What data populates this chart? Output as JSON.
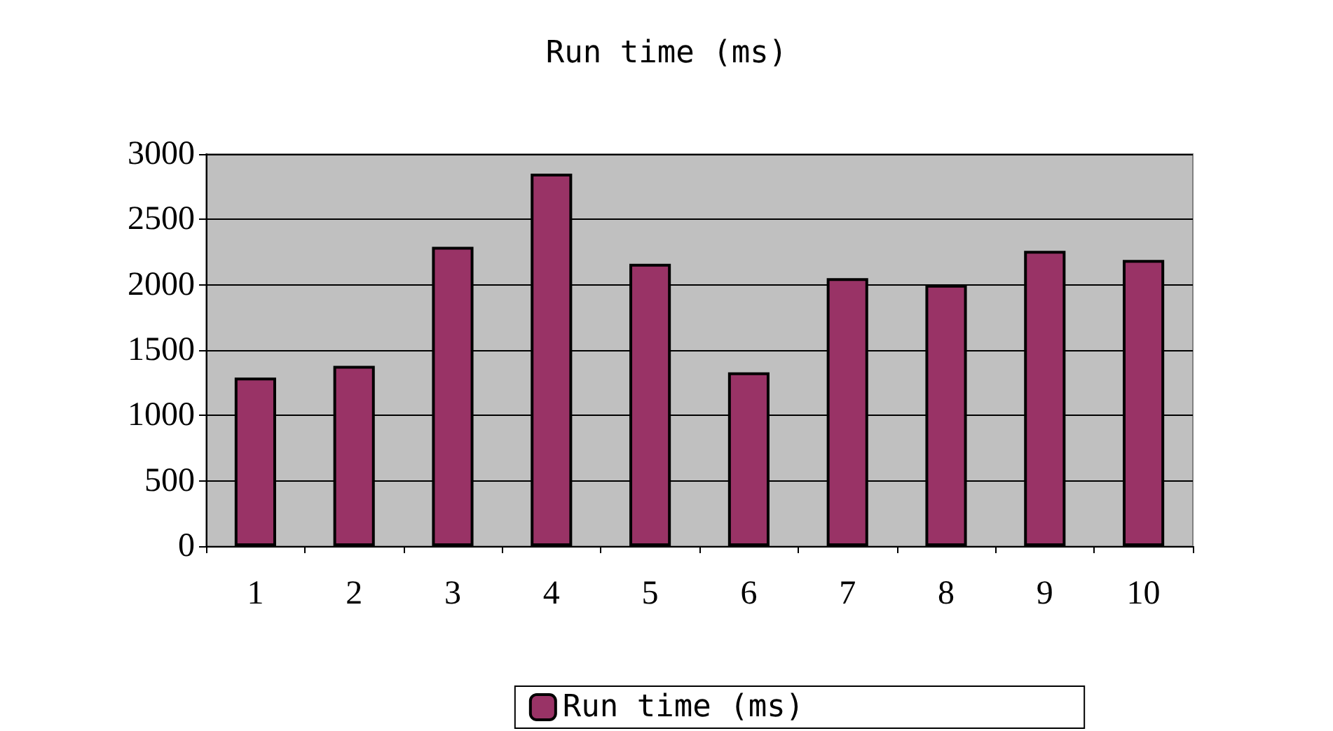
{
  "chart_data": {
    "type": "bar",
    "title": "Run time (ms)",
    "categories": [
      "1",
      "2",
      "3",
      "4",
      "5",
      "6",
      "7",
      "8",
      "9",
      "10"
    ],
    "series": [
      {
        "name": "Run time (ms)",
        "color": "#993366",
        "values": [
          1290,
          1380,
          2290,
          2850,
          2160,
          1330,
          2050,
          2000,
          2260,
          2190
        ]
      }
    ],
    "ylim": [
      0,
      3000
    ],
    "yticks": [
      0,
      500,
      1000,
      1500,
      2000,
      2500,
      3000
    ],
    "grid": "y",
    "legend": "bottom"
  }
}
